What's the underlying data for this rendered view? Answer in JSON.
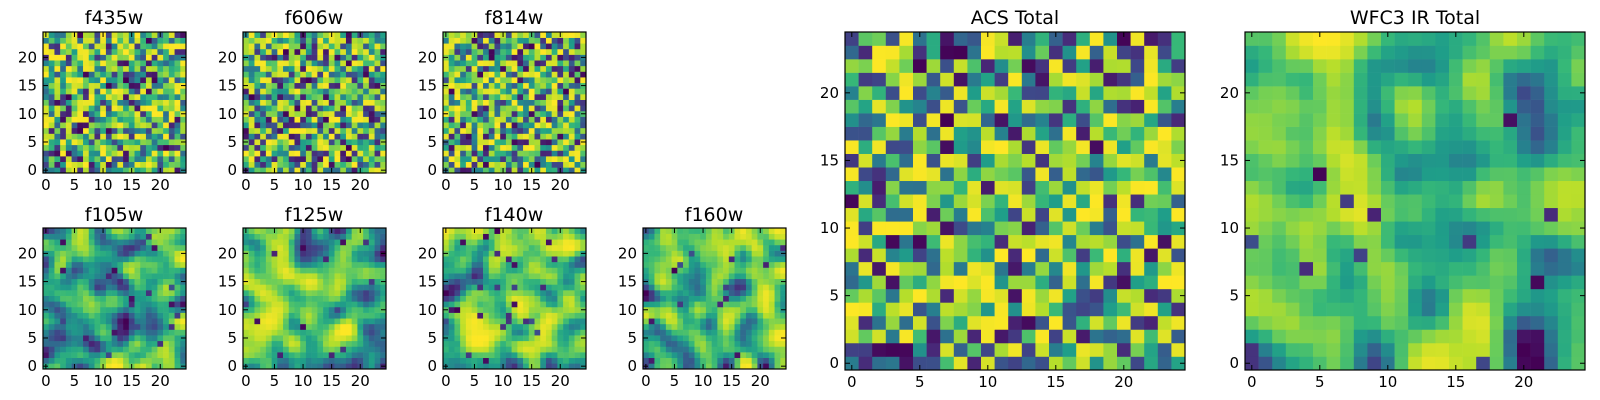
{
  "chart_data": [
    {
      "type": "heatmap",
      "title": "f435w",
      "size": 25,
      "colormap": "viridis",
      "xticks": [
        0,
        5,
        10,
        15,
        20
      ],
      "yticks": [
        0,
        5,
        10,
        15,
        20
      ],
      "xlim": [
        0,
        25
      ],
      "ylim": [
        0,
        25
      ],
      "grid": false,
      "texture": "noise",
      "seed": 11
    },
    {
      "type": "heatmap",
      "title": "f606w",
      "size": 25,
      "colormap": "viridis",
      "xticks": [
        0,
        5,
        10,
        15,
        20
      ],
      "yticks": [
        0,
        5,
        10,
        15,
        20
      ],
      "xlim": [
        0,
        25
      ],
      "ylim": [
        0,
        25
      ],
      "grid": false,
      "texture": "noise",
      "seed": 23
    },
    {
      "type": "heatmap",
      "title": "f814w",
      "size": 25,
      "colormap": "viridis",
      "xticks": [
        0,
        5,
        10,
        15,
        20
      ],
      "yticks": [
        0,
        5,
        10,
        15,
        20
      ],
      "xlim": [
        0,
        25
      ],
      "ylim": [
        0,
        25
      ],
      "grid": false,
      "texture": "noise",
      "seed": 37
    },
    {
      "type": "heatmap",
      "title": "f105w",
      "size": 25,
      "colormap": "viridis",
      "xticks": [
        0,
        5,
        10,
        15,
        20
      ],
      "yticks": [
        0,
        5,
        10,
        15,
        20
      ],
      "xlim": [
        0,
        25
      ],
      "ylim": [
        0,
        25
      ],
      "grid": false,
      "texture": "smooth",
      "seed": 41
    },
    {
      "type": "heatmap",
      "title": "f125w",
      "size": 25,
      "colormap": "viridis",
      "xticks": [
        0,
        5,
        10,
        15,
        20
      ],
      "yticks": [
        0,
        5,
        10,
        15,
        20
      ],
      "xlim": [
        0,
        25
      ],
      "ylim": [
        0,
        25
      ],
      "grid": false,
      "texture": "smooth",
      "seed": 53
    },
    {
      "type": "heatmap",
      "title": "f140w",
      "size": 25,
      "colormap": "viridis",
      "xticks": [
        0,
        5,
        10,
        15,
        20
      ],
      "yticks": [
        0,
        5,
        10,
        15,
        20
      ],
      "xlim": [
        0,
        25
      ],
      "ylim": [
        0,
        25
      ],
      "grid": false,
      "texture": "smooth",
      "seed": 67
    },
    {
      "type": "heatmap",
      "title": "f160w",
      "size": 25,
      "colormap": "viridis",
      "xticks": [
        0,
        5,
        10,
        15,
        20
      ],
      "yticks": [
        0,
        5,
        10,
        15,
        20
      ],
      "xlim": [
        0,
        25
      ],
      "ylim": [
        0,
        25
      ],
      "grid": false,
      "texture": "smooth",
      "seed": 79
    },
    {
      "type": "heatmap",
      "title": "ACS Total",
      "size": 25,
      "colormap": "viridis",
      "xticks": [
        0,
        5,
        10,
        15,
        20
      ],
      "yticks": [
        0,
        5,
        10,
        15,
        20
      ],
      "xlim": [
        0,
        25
      ],
      "ylim": [
        0,
        25
      ],
      "grid": false,
      "texture": "noise",
      "seed": 97
    },
    {
      "type": "heatmap",
      "title": "WFC3 IR Total",
      "size": 25,
      "colormap": "viridis",
      "xticks": [
        0,
        5,
        10,
        15,
        20
      ],
      "yticks": [
        0,
        5,
        10,
        15,
        20
      ],
      "xlim": [
        0,
        25
      ],
      "ylim": [
        0,
        25
      ],
      "grid": false,
      "texture": "smooth",
      "seed": 131
    }
  ]
}
